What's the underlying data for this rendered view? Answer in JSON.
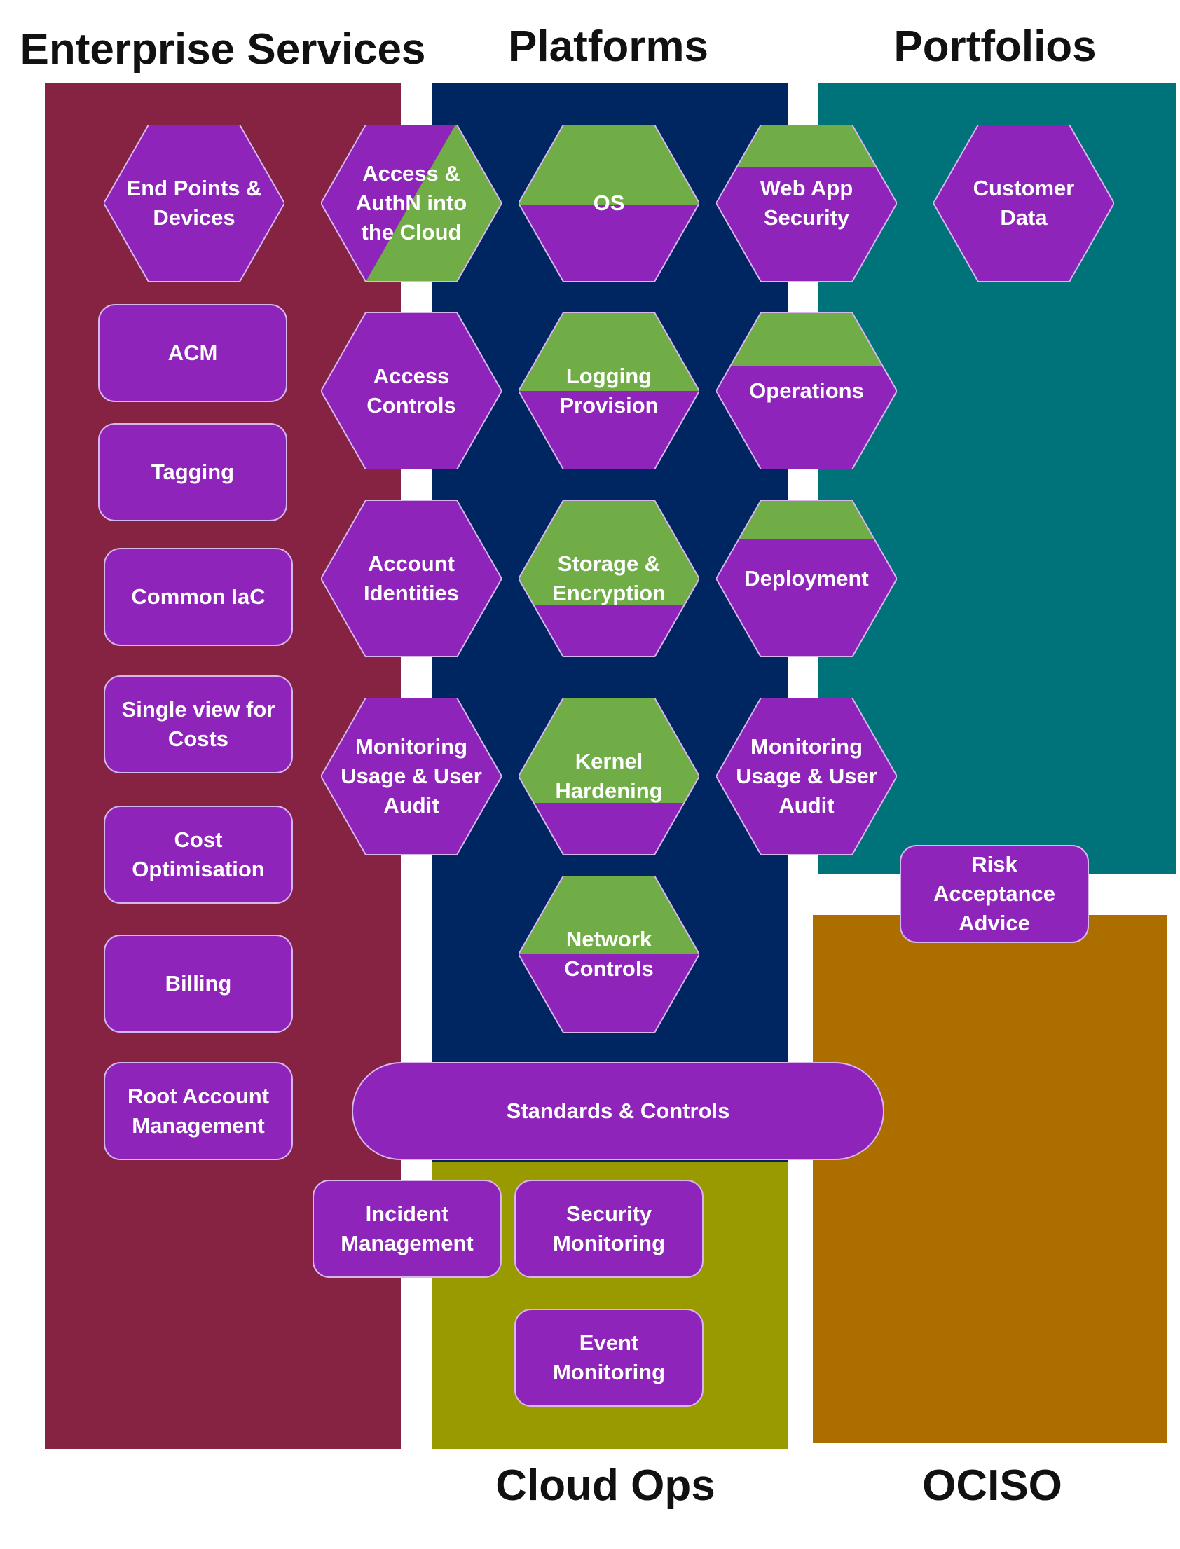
{
  "titles": {
    "enterprise": "Enterprise Services",
    "platforms": "Platforms",
    "portfolios": "Portfolios",
    "cloud_ops": "Cloud Ops",
    "ociso": "OCISO"
  },
  "colors": {
    "enterprise_zone": "#862342",
    "platforms_zone": "#002661",
    "portfolios_zone": "#00737a",
    "cloud_ops_zone": "#999900",
    "ociso_zone": "#ad6e00",
    "element_purple": "#8e24b9",
    "element_green": "#70ad47",
    "element_border": "#d7b6ee"
  },
  "hexagons": {
    "end_points": "End Points &\nDevices",
    "access_authn": "Access &\nAuthN into\nthe Cloud",
    "os": "OS",
    "web_app_security": "Web App\nSecurity",
    "customer_data": "Customer\nData",
    "access_controls": "Access\nControls",
    "logging_provision": "Logging\nProvision",
    "operations": "Operations",
    "account_identities": "Account\nIdentities",
    "storage_encryption": "Storage &\nEncryption",
    "deployment": "Deployment",
    "monitoring_usage_left": "Monitoring\nUsage & User\nAudit",
    "kernel_hardening": "Kernel\nHardening",
    "monitoring_usage_right": "Monitoring\nUsage & User\nAudit",
    "network_controls": "Network\nControls"
  },
  "boxes": {
    "acm": "ACM",
    "tagging": "Tagging",
    "common_iac": "Common IaC",
    "single_view_costs": "Single view for\nCosts",
    "cost_optimisation": "Cost\nOptimisation",
    "billing": "Billing",
    "root_account": "Root Account\nManagement",
    "risk_acceptance": "Risk Acceptance\nAdvice",
    "standards_controls": "Standards & Controls",
    "incident_management": "Incident\nManagement",
    "security_monitoring": "Security\nMonitoring",
    "event_monitoring": "Event\nMonitoring"
  }
}
